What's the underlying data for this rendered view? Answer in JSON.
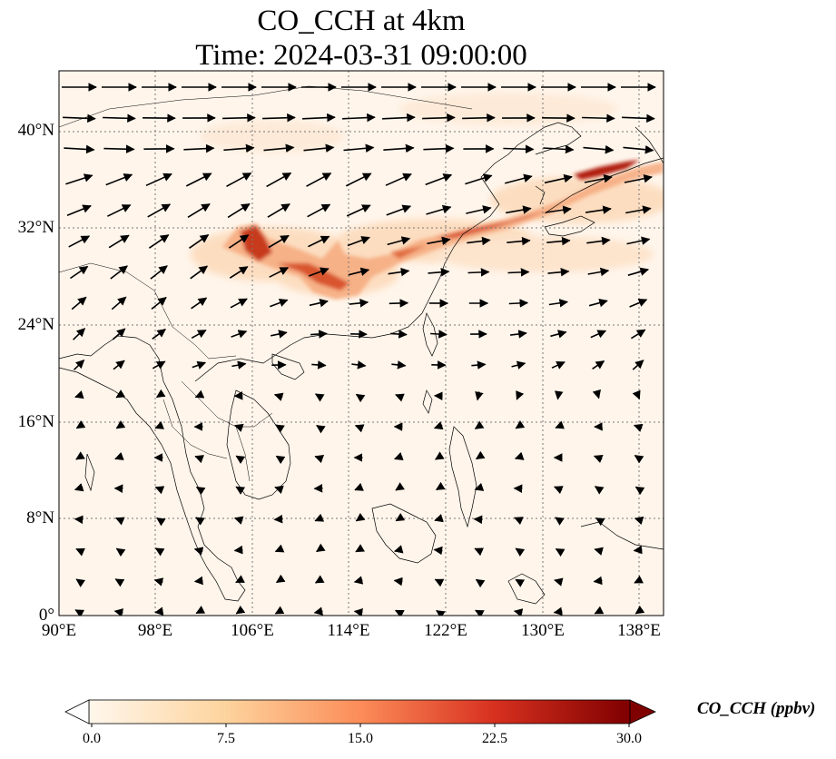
{
  "title": {
    "line1": "CO_CCH at 4km",
    "line2": "Time: 2024-03-31 09:00:00"
  },
  "map": {
    "variable": "CO_CCH",
    "level": "4km",
    "lon_range": [
      90,
      140
    ],
    "lat_range": [
      0,
      45
    ],
    "gridlines": true,
    "gridline_style": "dotted",
    "lat_ticks": [
      "0°",
      "8°N",
      "16°N",
      "24°N",
      "32°N",
      "40°N"
    ],
    "lon_ticks": [
      "90°E",
      "98°E",
      "106°E",
      "114°E",
      "122°E",
      "130°E",
      "138°E"
    ],
    "overlay": "wind vectors",
    "plume_color_high": "#b01e0e",
    "background_color": "#fff5eb"
  },
  "colorbar": {
    "label": "CO_CCH (ppbv)",
    "ticks": [
      "0.0",
      "7.5",
      "15.0",
      "22.5",
      "30.0"
    ],
    "range": [
      0,
      30
    ],
    "colormap": "OrRd",
    "extend": "both"
  }
}
